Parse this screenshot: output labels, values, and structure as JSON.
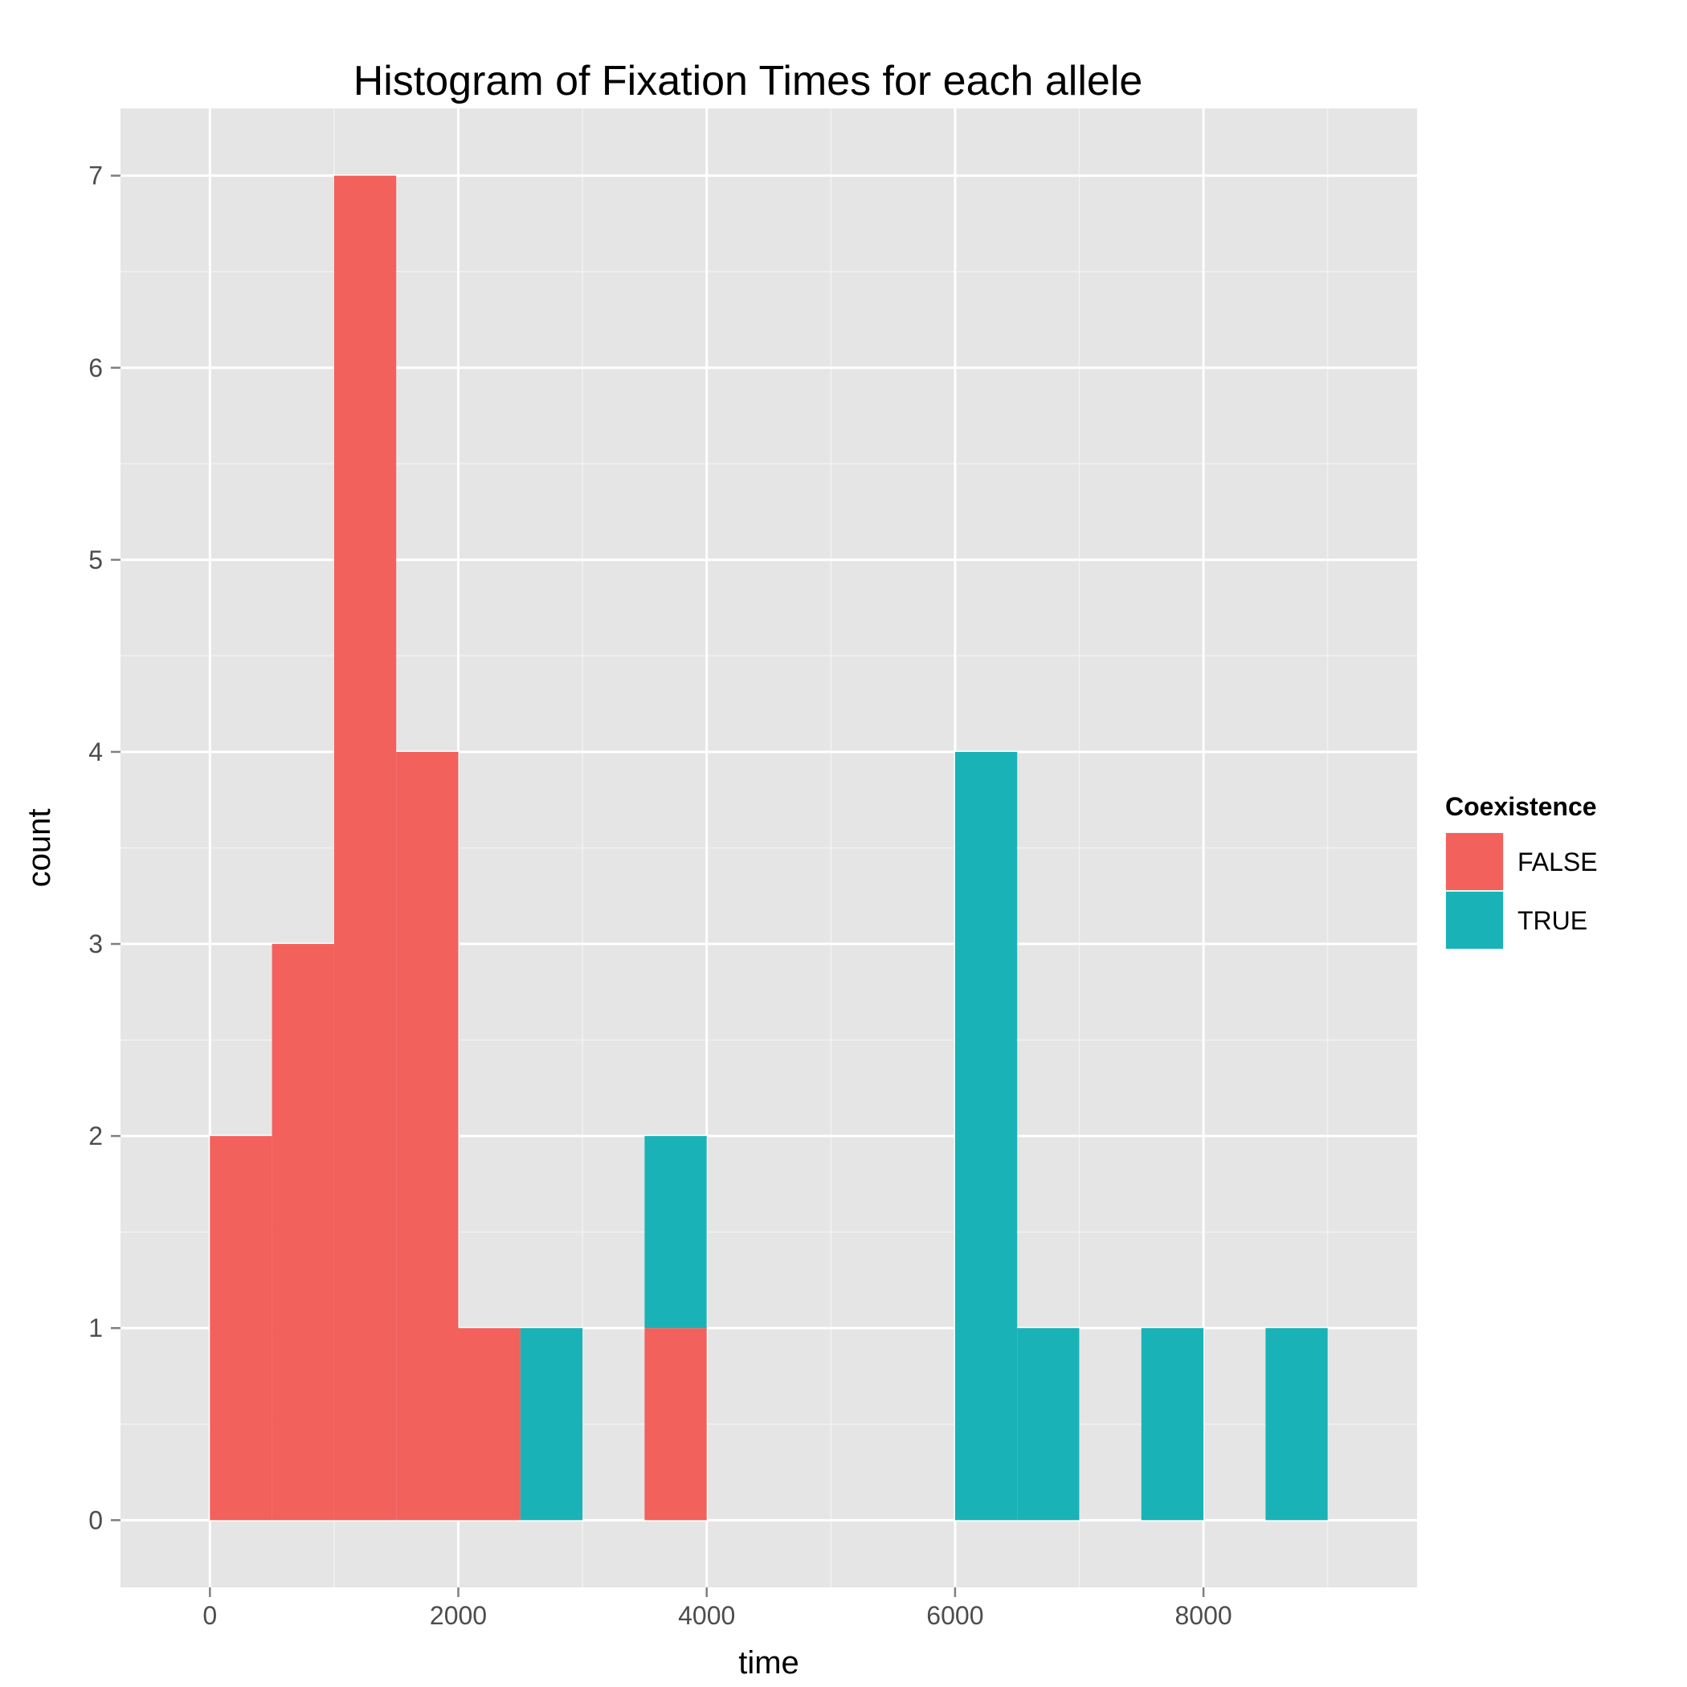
{
  "chart_data": {
    "type": "bar",
    "title": "Histogram of Fixation Times for each allele",
    "xlabel": "time",
    "ylabel": "count",
    "xlim": [
      -720,
      9720
    ],
    "ylim": [
      -0.35,
      7.35
    ],
    "x_ticks": [
      0,
      2000,
      4000,
      6000,
      8000
    ],
    "x_tick_labels": [
      "0",
      "2000",
      "4000",
      "6000",
      "8000"
    ],
    "x_minor_ticks": [
      1000,
      3000,
      5000,
      7000,
      9000
    ],
    "y_ticks": [
      0,
      1,
      2,
      3,
      4,
      5,
      6,
      7
    ],
    "y_tick_labels": [
      "0",
      "1",
      "2",
      "3",
      "4",
      "5",
      "6",
      "7"
    ],
    "y_minor_ticks": [
      0.5,
      1.5,
      2.5,
      3.5,
      4.5,
      5.5,
      6.5
    ],
    "grid": true,
    "stacked": true,
    "binwidth": 500,
    "legend": {
      "title": "Coexistence",
      "position": "right"
    },
    "series": [
      {
        "name": "FALSE",
        "color": "#F2615C",
        "bins": [
          {
            "x0": 0,
            "x1": 500,
            "count": 2
          },
          {
            "x0": 500,
            "x1": 1000,
            "count": 3
          },
          {
            "x0": 1000,
            "x1": 1500,
            "count": 7
          },
          {
            "x0": 1500,
            "x1": 2000,
            "count": 4
          },
          {
            "x0": 2000,
            "x1": 2500,
            "count": 1
          },
          {
            "x0": 3500,
            "x1": 4000,
            "count": 1
          }
        ]
      },
      {
        "name": "TRUE",
        "color": "#19B3B7",
        "bins": [
          {
            "x0": 2500,
            "x1": 3000,
            "count": 1
          },
          {
            "x0": 3500,
            "x1": 4000,
            "count": 1
          },
          {
            "x0": 6000,
            "x1": 6500,
            "count": 4
          },
          {
            "x0": 6500,
            "x1": 7000,
            "count": 1
          },
          {
            "x0": 7500,
            "x1": 8000,
            "count": 1
          },
          {
            "x0": 8500,
            "x1": 9000,
            "count": 1
          }
        ]
      }
    ]
  }
}
